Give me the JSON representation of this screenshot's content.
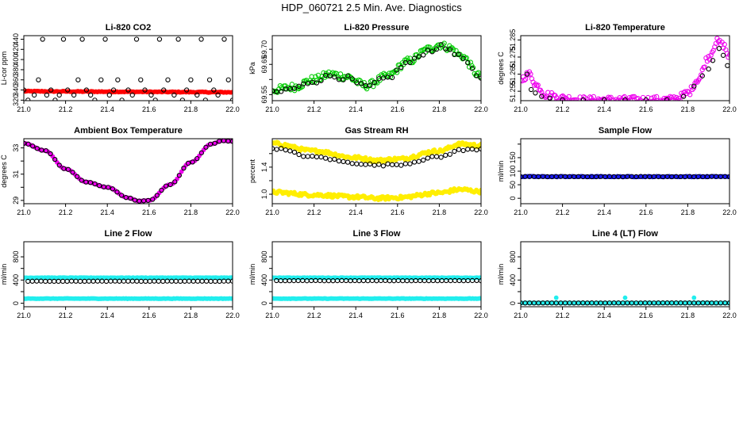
{
  "figure": {
    "title": "HDP_060721  2.5 Min. Ave. Diagnostics"
  },
  "chart_data": [
    {
      "type": "scatter",
      "title": "Li-820 CO2",
      "ylabel": "Li-cor ppm",
      "xlim": [
        21.0,
        22.0
      ],
      "ylim": [
        319,
        447
      ],
      "xticks": [
        "21.0",
        "21.2",
        "21.4",
        "21.6",
        "21.8",
        "22.0"
      ],
      "yticks": [
        {
          "value": 320,
          "label": "320"
        },
        {
          "value": 340,
          "label": "340"
        },
        {
          "value": 360,
          "label": "360"
        },
        {
          "value": 380,
          "label": "380"
        },
        {
          "value": 400,
          "label": "400"
        },
        {
          "value": 420,
          "label": "420"
        },
        {
          "value": 440,
          "label": "440"
        }
      ],
      "series": [
        {
          "name": "filled",
          "color": "#ff0000",
          "style": "filled",
          "generator": "linear",
          "n": 140,
          "x0": 21.0,
          "x1": 22.0,
          "y0": 337.5,
          "y1": 335.5,
          "jitter": 0.8
        },
        {
          "name": "raw",
          "color": "#000000",
          "style": "open",
          "x": [
            21.0,
            21.02,
            21.05,
            21.07,
            21.09,
            21.11,
            21.13,
            21.15,
            21.17,
            21.19,
            21.21,
            21.24,
            21.26,
            21.28,
            21.3,
            21.32,
            21.34,
            21.37,
            21.39,
            21.41,
            21.43,
            21.45,
            21.47,
            21.5,
            21.52,
            21.54,
            21.56,
            21.58,
            21.61,
            21.63,
            21.65,
            21.67,
            21.69,
            21.72,
            21.74,
            21.76,
            21.78,
            21.8,
            21.83,
            21.85,
            21.87,
            21.89,
            21.91,
            21.93,
            21.96,
            21.98,
            22.0
          ],
          "y": [
            340,
            320,
            330,
            360,
            440,
            330,
            340,
            320,
            330,
            440,
            340,
            330,
            360,
            440,
            340,
            330,
            320,
            360,
            440,
            330,
            340,
            360,
            320,
            340,
            330,
            440,
            360,
            340,
            330,
            320,
            440,
            340,
            360,
            330,
            440,
            320,
            340,
            360,
            330,
            440,
            320,
            360,
            340,
            330,
            440,
            360,
            320
          ]
        }
      ]
    },
    {
      "type": "scatter",
      "title": "Li-820 Pressure",
      "ylabel": "kPa",
      "xlim": [
        21.0,
        22.0
      ],
      "ylim": [
        69.53,
        69.745
      ],
      "xticks": [
        "21.0",
        "21.2",
        "21.4",
        "21.6",
        "21.8",
        "22.0"
      ],
      "yticks": [
        {
          "value": 69.55,
          "label": "69.55"
        },
        {
          "value": 69.6,
          "label": ""
        },
        {
          "value": 69.65,
          "label": "69.65"
        },
        {
          "value": 69.7,
          "label": "69.70"
        }
      ],
      "series": [
        {
          "name": "filled",
          "color": "#00cc00",
          "style": "open",
          "generator": "curve",
          "n": 160,
          "jitter": 0.012,
          "x": [
            21.0,
            21.1,
            21.2,
            21.28,
            21.35,
            21.45,
            21.55,
            21.65,
            21.75,
            21.8,
            21.85,
            21.9,
            22.0
          ],
          "y": [
            69.565,
            69.575,
            69.6,
            69.618,
            69.61,
            69.58,
            69.61,
            69.66,
            69.7,
            69.715,
            69.705,
            69.68,
            69.61
          ]
        },
        {
          "name": "raw",
          "color": "#000000",
          "style": "open",
          "generator": "curve",
          "n": 48,
          "jitter": 0.008,
          "x": [
            21.0,
            21.1,
            21.2,
            21.28,
            21.35,
            21.45,
            21.55,
            21.65,
            21.75,
            21.8,
            21.85,
            21.9,
            22.0
          ],
          "y": [
            69.555,
            69.57,
            69.595,
            69.612,
            69.605,
            69.575,
            69.605,
            69.655,
            69.695,
            69.708,
            69.7,
            69.675,
            69.6
          ]
        }
      ]
    },
    {
      "type": "scatter",
      "title": "Li-820 Temperature",
      "ylabel": "degrees C",
      "xlim": [
        21.0,
        22.0
      ],
      "ylim": [
        51.2495,
        51.2875
      ],
      "xticks": [
        "21.0",
        "21.2",
        "21.4",
        "21.6",
        "21.8",
        "22.0"
      ],
      "yticks": [
        {
          "value": 51.255,
          "label": "51.255"
        },
        {
          "value": 51.265,
          "label": "51.265"
        },
        {
          "value": 51.275,
          "label": "51.275"
        },
        {
          "value": 51.285,
          "label": "51.285"
        }
      ],
      "series": [
        {
          "name": "filled",
          "color": "#ee00ee",
          "style": "open",
          "generator": "curve",
          "n": 170,
          "jitter": 0.002,
          "x": [
            21.0,
            21.04,
            21.08,
            21.12,
            21.2,
            21.3,
            21.5,
            21.7,
            21.75,
            21.8,
            21.85,
            21.9,
            21.94,
            21.97,
            22.0
          ],
          "y": [
            51.262,
            51.265,
            51.258,
            51.253,
            51.251,
            51.25,
            51.25,
            51.25,
            51.251,
            51.254,
            51.262,
            51.275,
            51.284,
            51.282,
            51.275
          ]
        },
        {
          "name": "raw",
          "color": "#000000",
          "style": "open",
          "x": [
            21.03,
            21.05,
            21.07,
            21.1,
            21.14,
            21.2,
            21.3,
            21.4,
            21.5,
            21.6,
            21.7,
            21.78,
            21.83,
            21.87,
            21.9,
            21.92,
            21.95,
            21.97,
            21.99
          ],
          "y": [
            51.265,
            51.256,
            51.254,
            51.252,
            51.251,
            51.25,
            51.25,
            51.25,
            51.25,
            51.25,
            51.25,
            51.252,
            51.258,
            51.264,
            51.268,
            51.273,
            51.28,
            51.276,
            51.27
          ]
        }
      ]
    },
    {
      "type": "scatter",
      "title": "Ambient Box Temperature",
      "ylabel": "degrees C",
      "xlim": [
        21.0,
        22.0
      ],
      "ylim": [
        28.75,
        33.7
      ],
      "xticks": [
        "21.0",
        "21.2",
        "21.4",
        "21.6",
        "21.8",
        "22.0"
      ],
      "yticks": [
        {
          "value": 29,
          "label": "29"
        },
        {
          "value": 30,
          "label": ""
        },
        {
          "value": 31,
          "label": "31"
        },
        {
          "value": 32,
          "label": ""
        },
        {
          "value": 33,
          "label": "33"
        }
      ],
      "series": [
        {
          "name": "filled",
          "color": "#ee00ee",
          "style": "filled",
          "generator": "curve",
          "n": 95,
          "jitter": 0,
          "x": [
            21.0,
            21.1,
            21.2,
            21.3,
            21.4,
            21.5,
            21.55,
            21.6,
            21.7,
            21.8,
            21.9,
            21.95,
            22.0
          ],
          "y": [
            33.35,
            32.8,
            31.4,
            30.4,
            30.0,
            29.2,
            28.95,
            29.0,
            30.2,
            31.9,
            33.3,
            33.55,
            33.5
          ]
        },
        {
          "name": "raw",
          "color": "#000000",
          "style": "open",
          "generator": "curve",
          "n": 48,
          "jitter": 0,
          "x": [
            21.0,
            21.1,
            21.2,
            21.3,
            21.4,
            21.5,
            21.55,
            21.6,
            21.7,
            21.8,
            21.9,
            21.95,
            22.0
          ],
          "y": [
            33.35,
            32.8,
            31.4,
            30.4,
            30.0,
            29.2,
            28.95,
            29.0,
            30.2,
            31.9,
            33.3,
            33.55,
            33.5
          ]
        }
      ]
    },
    {
      "type": "scatter",
      "title": "Gas Stream RH",
      "ylabel": "percent",
      "xlim": [
        21.0,
        22.0
      ],
      "ylim": [
        0.86,
        1.82
      ],
      "xticks": [
        "21.0",
        "21.2",
        "21.4",
        "21.6",
        "21.8",
        "22.0"
      ],
      "yticks": [
        {
          "value": 1.0,
          "label": "1.0"
        },
        {
          "value": 1.2,
          "label": ""
        },
        {
          "value": 1.4,
          "label": "1.4"
        },
        {
          "value": 1.6,
          "label": ""
        }
      ],
      "series": [
        {
          "name": "upper",
          "color": "#ffee00",
          "style": "filled",
          "generator": "curve",
          "n": 180,
          "jitter": 0.025,
          "x": [
            21.0,
            21.2,
            21.4,
            21.5,
            21.6,
            21.8,
            21.9,
            22.0
          ],
          "y": [
            1.75,
            1.64,
            1.54,
            1.5,
            1.52,
            1.64,
            1.74,
            1.72
          ]
        },
        {
          "name": "lower",
          "color": "#ffee00",
          "style": "filled",
          "generator": "curve",
          "n": 180,
          "jitter": 0.025,
          "x": [
            21.0,
            21.2,
            21.4,
            21.5,
            21.6,
            21.8,
            21.9,
            22.0
          ],
          "y": [
            1.03,
            0.99,
            0.96,
            0.94,
            0.95,
            1.02,
            1.07,
            1.04
          ]
        },
        {
          "name": "raw",
          "color": "#000000",
          "style": "open",
          "generator": "curve",
          "n": 48,
          "jitter": 0.015,
          "x": [
            21.0,
            21.2,
            21.4,
            21.5,
            21.6,
            21.8,
            21.9,
            22.0
          ],
          "y": [
            1.68,
            1.55,
            1.46,
            1.43,
            1.44,
            1.55,
            1.65,
            1.67
          ]
        }
      ]
    },
    {
      "type": "scatter",
      "title": "Sample Flow",
      "ylabel": "ml/min",
      "xlim": [
        21.0,
        22.0
      ],
      "ylim": [
        -20,
        220
      ],
      "xticks": [
        "21.0",
        "21.2",
        "21.4",
        "21.6",
        "21.8",
        "22.0"
      ],
      "yticks": [
        {
          "value": 0,
          "label": "0"
        },
        {
          "value": 50,
          "label": "50"
        },
        {
          "value": 100,
          "label": "100"
        },
        {
          "value": 150,
          "label": "150"
        },
        {
          "value": 200,
          "label": ""
        }
      ],
      "series": [
        {
          "name": "filled",
          "color": "#1a1aff",
          "style": "filled",
          "generator": "linear",
          "n": 150,
          "x0": 21.0,
          "x1": 22.0,
          "y0": 80,
          "y1": 80,
          "jitter": 1.5
        },
        {
          "name": "raw",
          "color": "#000000",
          "style": "open",
          "generator": "linear",
          "n": 48,
          "x0": 21.0,
          "x1": 22.0,
          "y0": 80,
          "y1": 80,
          "jitter": 0.5
        }
      ]
    },
    {
      "type": "scatter",
      "title": "Line 2 Flow",
      "ylabel": "ml/min",
      "xlim": [
        21.0,
        22.0
      ],
      "ylim": [
        -60,
        1060
      ],
      "xticks": [
        "21.0",
        "21.2",
        "21.4",
        "21.6",
        "21.8",
        "22.0"
      ],
      "yticks": [
        {
          "value": 0,
          "label": "0"
        },
        {
          "value": 200,
          "label": ""
        },
        {
          "value": 400,
          "label": "400"
        },
        {
          "value": 600,
          "label": ""
        },
        {
          "value": 800,
          "label": "800"
        }
      ],
      "series": [
        {
          "name": "upper",
          "color": "#22eeee",
          "style": "filled",
          "generator": "linear",
          "n": 150,
          "x0": 21.0,
          "x1": 22.0,
          "y0": 440,
          "y1": 440,
          "jitter": 4
        },
        {
          "name": "lower",
          "color": "#22eeee",
          "style": "filled",
          "generator": "linear",
          "n": 150,
          "x0": 21.0,
          "x1": 22.0,
          "y0": 80,
          "y1": 80,
          "jitter": 4
        },
        {
          "name": "raw",
          "color": "#000000",
          "style": "open",
          "generator": "linear",
          "n": 48,
          "x0": 21.02,
          "x1": 22.0,
          "y0": 380,
          "y1": 380,
          "jitter": 2
        }
      ]
    },
    {
      "type": "scatter",
      "title": "Line 3 Flow",
      "ylabel": "ml/min",
      "xlim": [
        21.0,
        22.0
      ],
      "ylim": [
        -60,
        1060
      ],
      "xticks": [
        "21.0",
        "21.2",
        "21.4",
        "21.6",
        "21.8",
        "22.0"
      ],
      "yticks": [
        {
          "value": 0,
          "label": "0"
        },
        {
          "value": 200,
          "label": ""
        },
        {
          "value": 400,
          "label": "400"
        },
        {
          "value": 600,
          "label": ""
        },
        {
          "value": 800,
          "label": "800"
        }
      ],
      "series": [
        {
          "name": "upper",
          "color": "#22eeee",
          "style": "filled",
          "generator": "linear",
          "n": 150,
          "x0": 21.0,
          "x1": 22.0,
          "y0": 440,
          "y1": 440,
          "jitter": 4
        },
        {
          "name": "lower",
          "color": "#22eeee",
          "style": "filled",
          "generator": "linear",
          "n": 150,
          "x0": 21.0,
          "x1": 22.0,
          "y0": 80,
          "y1": 80,
          "jitter": 4
        },
        {
          "name": "raw",
          "color": "#000000",
          "style": "open",
          "generator": "linear",
          "n": 48,
          "x0": 21.02,
          "x1": 22.0,
          "y0": 390,
          "y1": 390,
          "jitter": 2
        }
      ]
    },
    {
      "type": "scatter",
      "title": "Line 4 (LT) Flow",
      "ylabel": "ml/min",
      "xlim": [
        21.0,
        22.0
      ],
      "ylim": [
        -60,
        1060
      ],
      "xticks": [
        "21.0",
        "21.2",
        "21.4",
        "21.6",
        "21.8",
        "22.0"
      ],
      "yticks": [
        {
          "value": 0,
          "label": "0"
        },
        {
          "value": 200,
          "label": ""
        },
        {
          "value": 400,
          "label": "400"
        },
        {
          "value": 600,
          "label": ""
        },
        {
          "value": 800,
          "label": "800"
        }
      ],
      "series": [
        {
          "name": "filled",
          "color": "#22eeee",
          "style": "filled",
          "generator": "linear",
          "n": 110,
          "x0": 21.0,
          "x1": 22.0,
          "y0": 5,
          "y1": 5,
          "jitter": 3
        },
        {
          "name": "spikes",
          "color": "#22eeee",
          "style": "filled",
          "x": [
            21.17,
            21.5,
            21.83
          ],
          "y": [
            95,
            95,
            95
          ]
        },
        {
          "name": "raw",
          "color": "#000000",
          "style": "open",
          "generator": "linear",
          "n": 48,
          "x0": 21.0,
          "x1": 22.0,
          "y0": 5,
          "y1": 5,
          "jitter": 1
        }
      ]
    }
  ]
}
